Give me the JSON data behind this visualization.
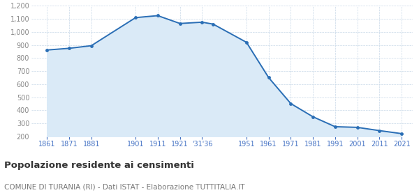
{
  "years": [
    1861,
    1871,
    1881,
    1901,
    1911,
    1921,
    1931,
    1936,
    1951,
    1961,
    1971,
    1981,
    1991,
    2001,
    2011,
    2021
  ],
  "population": [
    862,
    875,
    895,
    1110,
    1125,
    1065,
    1075,
    1060,
    921,
    651,
    452,
    351,
    275,
    270,
    245,
    222
  ],
  "line_color": "#2a6eb5",
  "fill_color": "#daeaf7",
  "marker_color": "#2a6eb5",
  "background_color": "#ffffff",
  "grid_color": "#c8d8e8",
  "title": "Popolazione residente ai censimenti",
  "subtitle": "COMUNE DI TURANIA (RI) - Dati ISTAT - Elaborazione TUTTITALIA.IT",
  "title_color": "#333333",
  "subtitle_color": "#777777",
  "tick_color": "#4472c4",
  "ytick_color": "#888888",
  "ylim": [
    200,
    1200
  ],
  "yticks": [
    200,
    300,
    400,
    500,
    600,
    700,
    800,
    900,
    1000,
    1100,
    1200
  ],
  "x_tick_positions": [
    1861,
    1871,
    1881,
    1901,
    1911,
    1921,
    1931,
    1951,
    1961,
    1971,
    1981,
    1991,
    2001,
    2011,
    2021
  ],
  "x_tick_labels": [
    "1861",
    "1871",
    "1881",
    "1901",
    "1911",
    "1921",
    "'31'36",
    "1951",
    "1961",
    "1971",
    "1981",
    "1991",
    "2001",
    "2011",
    "2021"
  ],
  "xlim_left": 1854,
  "xlim_right": 2026
}
